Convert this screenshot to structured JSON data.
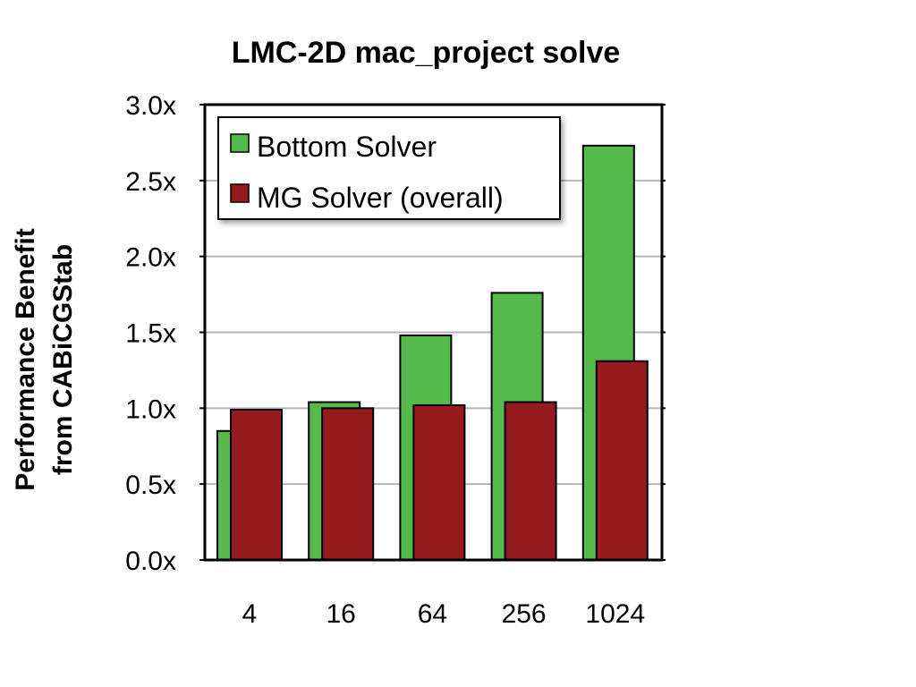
{
  "chart_data": {
    "type": "bar",
    "title": "LMC-2D mac_project solve",
    "ylabel": [
      "Performance Benefit",
      "from CABiCGStab"
    ],
    "xlabel": "",
    "categories": [
      "4",
      "16",
      "64",
      "256",
      "1024"
    ],
    "series": [
      {
        "name": "Bottom Solver",
        "color": "#56b94b",
        "values": [
          0.85,
          1.04,
          1.48,
          1.76,
          2.73
        ]
      },
      {
        "name": "MG Solver (overall)",
        "color": "#951b1e",
        "values": [
          0.99,
          1.0,
          1.02,
          1.04,
          1.31
        ]
      }
    ],
    "ylim": [
      0,
      3.0
    ],
    "yticks": [
      0,
      0.5,
      1.0,
      1.5,
      2.0,
      2.5,
      3.0
    ],
    "ytick_labels": [
      "0.0x",
      "0.5x",
      "1.0x",
      "1.5x",
      "2.0x",
      "2.5x",
      "3.0x"
    ],
    "grid": true,
    "legend": "top-left"
  }
}
